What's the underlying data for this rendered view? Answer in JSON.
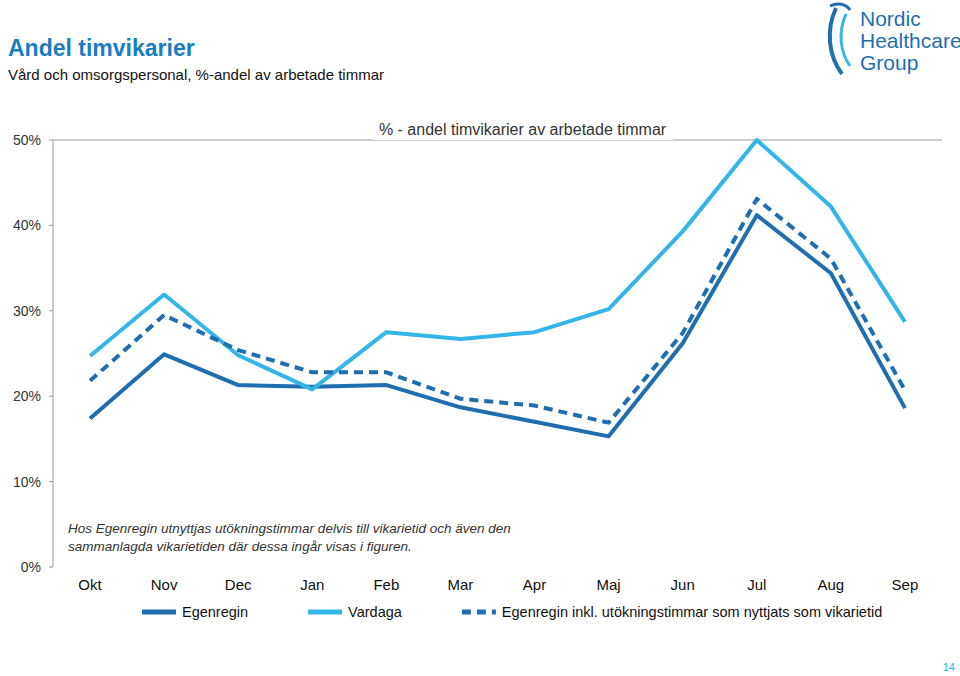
{
  "header": {
    "title": "Andel timvikarier",
    "subtitle": "Vård och omsorgspersonal, %-andel av arbetade timmar",
    "logo": [
      "Nordic",
      "Healthcare",
      "Group"
    ]
  },
  "page_number": "14",
  "chart_data": {
    "type": "line",
    "title": "% - andel timvikarier av arbetade timmar",
    "annotations": [
      "Hos Egenregin utnyttjas utökningstimmar delvis till vikarietid och även den",
      "sammanlagda vikarietiden där dessa ingår visas i figuren."
    ],
    "categories": [
      "Okt",
      "Nov",
      "Dec",
      "Jan",
      "Feb",
      "Mar",
      "Apr",
      "Maj",
      "Jun",
      "Jul",
      "Aug",
      "Sep"
    ],
    "series": [
      {
        "name": "Egenregin",
        "color": "#1f6eb0",
        "line_style": "solid",
        "values": [
          17.4,
          24.9,
          21.3,
          21.1,
          21.3,
          18.7,
          17.0,
          15.3,
          26.2,
          41.2,
          34.4,
          18.6
        ]
      },
      {
        "name": "Vardaga",
        "color": "#33b5e8",
        "line_style": "solid",
        "values": [
          24.7,
          31.9,
          24.8,
          20.8,
          27.5,
          26.7,
          27.5,
          30.2,
          39.3,
          50.0,
          42.2,
          28.7
        ]
      },
      {
        "name": "Egenregin inkl. utökningstimmar som nyttjats som vikarietid",
        "color": "#1f6eb0",
        "line_style": "dashed",
        "values": [
          21.8,
          29.5,
          25.4,
          22.8,
          22.8,
          19.7,
          18.9,
          16.9,
          27.4,
          43.1,
          36.1,
          20.7
        ]
      }
    ],
    "ylim": [
      0,
      50
    ],
    "yticks": [
      {
        "value": 0,
        "label": "0%"
      },
      {
        "value": 10,
        "label": "10%"
      },
      {
        "value": 20,
        "label": "20%"
      },
      {
        "value": 30,
        "label": "30%"
      },
      {
        "value": 40,
        "label": "40%"
      },
      {
        "value": 50,
        "label": "50%"
      }
    ],
    "grid": false,
    "legend": "bottom"
  }
}
